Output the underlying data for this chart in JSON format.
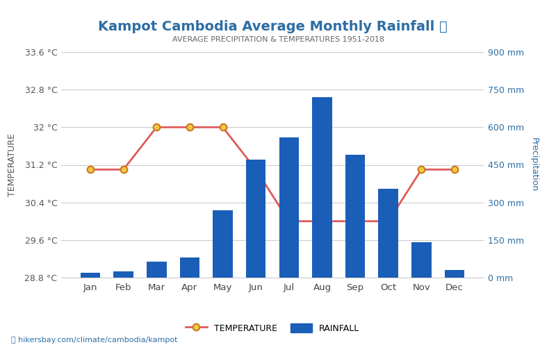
{
  "title": "Kampot Cambodia Average Monthly Rainfall 🌧",
  "subtitle": "AVERAGE PRECIPITATION & TEMPERATURES 1951-2018",
  "months": [
    "Jan",
    "Feb",
    "Mar",
    "Apr",
    "May",
    "Jun",
    "Jul",
    "Aug",
    "Sep",
    "Oct",
    "Nov",
    "Dec"
  ],
  "rainfall_mm": [
    20,
    25,
    65,
    80,
    270,
    470,
    560,
    720,
    490,
    355,
    140,
    30
  ],
  "temperature_c": [
    31.1,
    31.1,
    32.0,
    32.0,
    32.0,
    31.1,
    30.0,
    30.0,
    30.0,
    30.0,
    31.1,
    31.1
  ],
  "bar_color": "#1a5eb8",
  "line_color": "#e05a5a",
  "marker_face": "#f5c842",
  "marker_edge": "#c87820",
  "title_color": "#2e6da4",
  "subtitle_color": "#666666",
  "left_axis_color": "#555555",
  "right_axis_color": "#2e6da4",
  "ylabel_left": "TEMPERATURE",
  "ylabel_right": "Precipitation",
  "temp_ylim": [
    28.8,
    33.6
  ],
  "temp_yticks": [
    28.8,
    29.6,
    30.4,
    31.2,
    32.0,
    32.8,
    33.6
  ],
  "temp_tick_labels": [
    "28.8 °C",
    "29.6 °C",
    "30.4 °C",
    "31.2 °C",
    "32 °C",
    "32.8 °C",
    "33.6 °C"
  ],
  "precip_ylim": [
    0,
    900
  ],
  "precip_yticks": [
    0,
    150,
    300,
    450,
    600,
    750,
    900
  ],
  "precip_tick_labels": [
    "0 mm",
    "150 mm",
    "300 mm",
    "450 mm",
    "600 mm",
    "750 mm",
    "900 mm"
  ],
  "footer_text": "hikersbay.com/climate/cambodia/kampot",
  "legend_temp_label": "TEMPERATURE",
  "legend_rain_label": "RAINFALL",
  "background_color": "#ffffff",
  "grid_color": "#cccccc"
}
